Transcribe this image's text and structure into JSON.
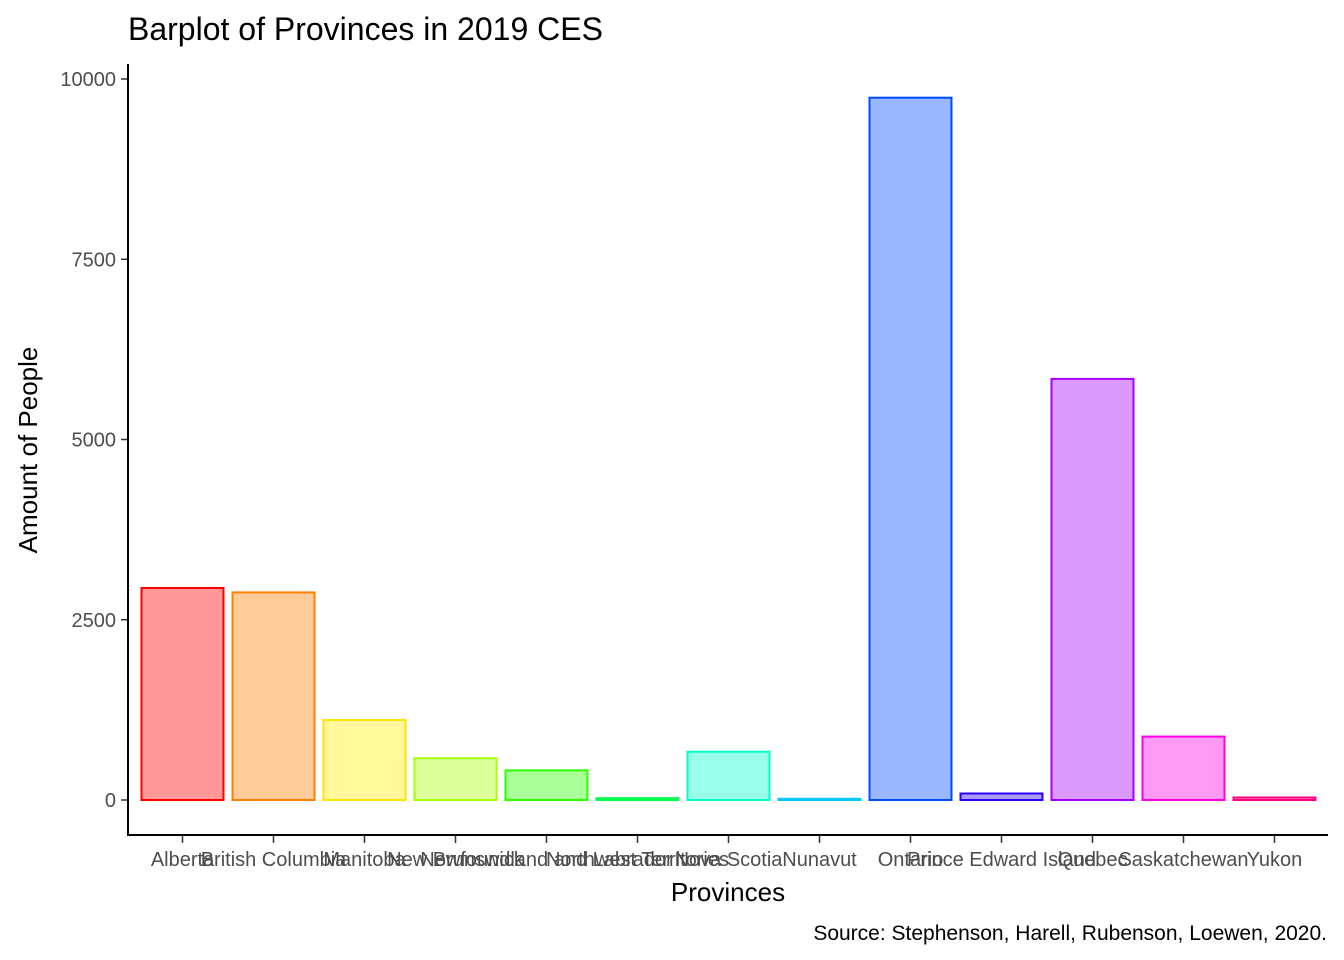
{
  "chart_data": {
    "type": "bar",
    "title": "Barplot of Provinces in 2019 CES",
    "xlabel": "Provinces",
    "ylabel": "Amount of People",
    "caption": "Source: Stephenson, Harell, Rubenson, Loewen, 2020.",
    "categories": [
      "Alberta",
      "British Columbia",
      "Manitoba",
      "New Brunswick",
      "Newfoundland and Labrador",
      "Northwest Territories",
      "Nova Scotia",
      "Nunavut",
      "Ontario",
      "Prince Edward Island",
      "Quebec",
      "Saskatchewan",
      "Yukon"
    ],
    "values": [
      2940,
      2880,
      1110,
      580,
      410,
      25,
      670,
      15,
      9740,
      90,
      5840,
      880,
      35
    ],
    "ylim": [
      0,
      10000
    ],
    "yticks": [
      0,
      2500,
      5000,
      7500,
      10000
    ],
    "grid": false,
    "legend": "none",
    "border_colors": [
      "#ff0000",
      "#ff8000",
      "#ffe600",
      "#a6ff00",
      "#2bff00",
      "#00ff4d",
      "#00ffc8",
      "#00c8ff",
      "#004dff",
      "#2b00ff",
      "#a600ff",
      "#ff00e6",
      "#ff0080"
    ],
    "fill_colors": [
      "#ff9999",
      "#ffcc99",
      "#fff799",
      "#dbff99",
      "#aaff99",
      "#99ffb8",
      "#99ffe9",
      "#99e9ff",
      "#99b8ff",
      "#aa99ff",
      "#db99ff",
      "#ff99f5",
      "#ff99cc"
    ]
  }
}
